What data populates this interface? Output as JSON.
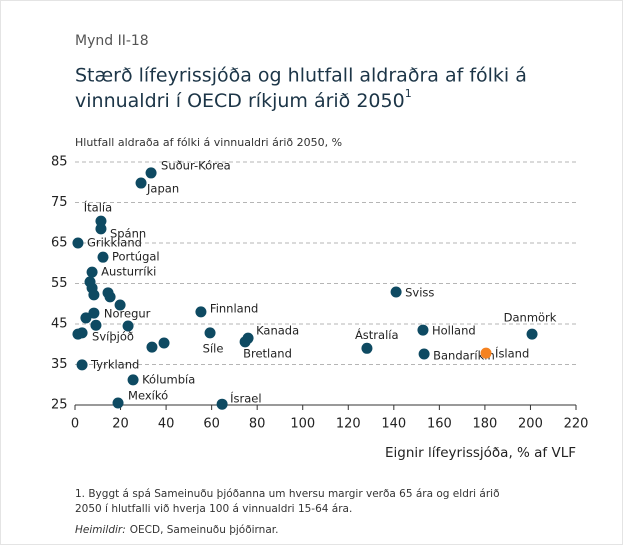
{
  "chart_data": {
    "type": "scatter",
    "figure_label": "Mynd II-18",
    "title": [
      "Stærð lífeyrissjóða og hlutfall aldraðra af fólki á",
      "vinnualdri í OECD ríkjum árið 2050"
    ],
    "title_superscript": "1",
    "y_label": "Hlutfall aldraða af fólki á vinnualdri árið 2050, %",
    "x_label": "Eignir lífeyrissjóða, % af VLF",
    "x": [
      33.4,
      29,
      11.4,
      11.4,
      1.3,
      12.3,
      7.5,
      6.6,
      7.5,
      8.3,
      14.5,
      15.4,
      19.8,
      8.3,
      4.8,
      9.2,
      23.3,
      3.1,
      1.3,
      33.8,
      39.1,
      55.3,
      59.3,
      76,
      74.7,
      3.1,
      25.5,
      18.9,
      64.6,
      141,
      152.8,
      200.7,
      128.2,
      153.3,
      180.5
    ],
    "y": [
      82.3,
      79.8,
      70.4,
      68.5,
      65,
      61.5,
      57.8,
      55.4,
      53.9,
      52.2,
      52.7,
      51.7,
      49.7,
      47.7,
      46.5,
      44.7,
      44.5,
      42.8,
      42.5,
      39.3,
      40.3,
      48,
      42.8,
      41.5,
      40.6,
      34.9,
      31.2,
      25.5,
      25.2,
      52.9,
      43.5,
      42.5,
      39,
      37.6,
      37.8
    ],
    "labels": [
      "Suður-Kórea",
      "Japan",
      "Ítalía",
      "Spánn",
      "Grikkland",
      "Portúgal",
      "Austurríki",
      null,
      null,
      null,
      null,
      null,
      null,
      "Noregur",
      null,
      null,
      null,
      "Svíþjóð",
      null,
      null,
      null,
      "Finnland",
      "Síle",
      "Kanada",
      "Bretland",
      "Tyrkland",
      "Kólumbía",
      "Mexíkó",
      "Ísrael",
      "Sviss",
      "Holland",
      "Danmörk",
      "Ástralía",
      "Bandaríkin",
      "Ísland"
    ],
    "colors": [
      "#0e4a62",
      "#0e4a62",
      "#0e4a62",
      "#0e4a62",
      "#0e4a62",
      "#0e4a62",
      "#0e4a62",
      "#0e4a62",
      "#0e4a62",
      "#0e4a62",
      "#0e4a62",
      "#0e4a62",
      "#0e4a62",
      "#0e4a62",
      "#0e4a62",
      "#0e4a62",
      "#0e4a62",
      "#0e4a62",
      "#0e4a62",
      "#0e4a62",
      "#0e4a62",
      "#0e4a62",
      "#0e4a62",
      "#0e4a62",
      "#0e4a62",
      "#0e4a62",
      "#0e4a62",
      "#0e4a62",
      "#0e4a62",
      "#0e4a62",
      "#0e4a62",
      "#0e4a62",
      "#0e4a62",
      "#0e4a62",
      "#f58220"
    ],
    "xlim": [
      0,
      220
    ],
    "xticks": [
      0,
      20,
      40,
      60,
      80,
      100,
      120,
      140,
      160,
      180,
      200,
      220
    ],
    "ylim": [
      25,
      85
    ],
    "yticks": [
      25,
      35,
      45,
      55,
      65,
      75,
      85
    ],
    "grid": true,
    "footnote": [
      "1. Byggt á spá Sameinuðu þjóðanna um hversu margir verða 65 ára og eldri árið",
      "2050 í hlutfalli við hverja 100 á vinnualdri 15-64 ára."
    ],
    "source_label": "Heimildir:",
    "source": "OECD, Sameinuðu þjóðirnar."
  }
}
